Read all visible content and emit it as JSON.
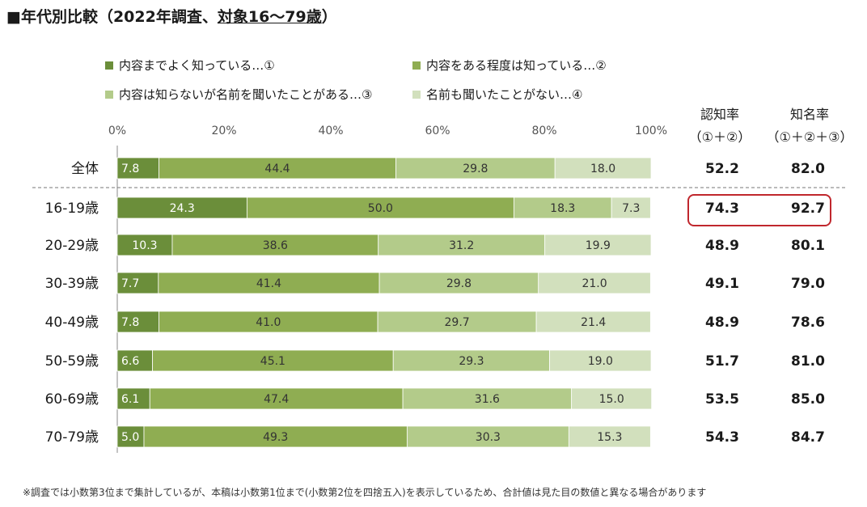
{
  "title": {
    "prefix": "■年代別比較（2022年調査、",
    "underlined": "対象16〜79歳",
    "suffix": "）"
  },
  "headers": {
    "awareness": {
      "line1": "認知率",
      "line2": "（①＋②）"
    },
    "name_recognition": {
      "line1": "知名率",
      "line2": "（①＋②＋③）"
    }
  },
  "note": "※調査では小数第3位まで集計しているが、本稿は小数第1位まで(小数第2位を四捨五入)を表示しているため、合計値は見た目の数値と異なる場合があります",
  "colors": {
    "s1": "#6b8e3a",
    "s2": "#8fad52",
    "s3": "#b3cb8a",
    "s4": "#d2e0bd",
    "highlight": "#c0272d"
  },
  "chart_data": {
    "type": "bar",
    "orientation": "horizontal-stacked-100",
    "xlim": [
      0,
      100
    ],
    "ticks": [
      "0%",
      "20%",
      "40%",
      "60%",
      "80%",
      "100%"
    ],
    "legend_placement": "top",
    "categories": [
      "全体",
      "16-19歳",
      "20-29歳",
      "30-39歳",
      "40-49歳",
      "50-59歳",
      "60-69歳",
      "70-79歳"
    ],
    "series": [
      {
        "name": "内容までよく知っている…①",
        "values": [
          7.8,
          24.3,
          10.3,
          7.7,
          7.8,
          6.6,
          6.1,
          5.0
        ]
      },
      {
        "name": "内容をある程度は知っている…②",
        "values": [
          44.4,
          50.0,
          38.6,
          41.4,
          41.0,
          45.1,
          47.4,
          49.3
        ]
      },
      {
        "name": "内容は知らないが名前を聞いたことがある…③",
        "values": [
          29.8,
          18.3,
          31.2,
          29.8,
          29.7,
          29.3,
          31.6,
          30.3
        ]
      },
      {
        "name": "名前も聞いたことがない…④",
        "values": [
          18.0,
          7.3,
          19.9,
          21.0,
          21.4,
          19.0,
          15.0,
          15.3
        ]
      }
    ],
    "awareness": [
      "52.2",
      "74.3",
      "48.9",
      "49.1",
      "48.9",
      "51.7",
      "53.5",
      "54.3"
    ],
    "name_recognition": [
      "82.0",
      "92.7",
      "80.1",
      "79.0",
      "78.6",
      "81.0",
      "85.0",
      "84.7"
    ],
    "highlighted_row": "16-19歳"
  }
}
